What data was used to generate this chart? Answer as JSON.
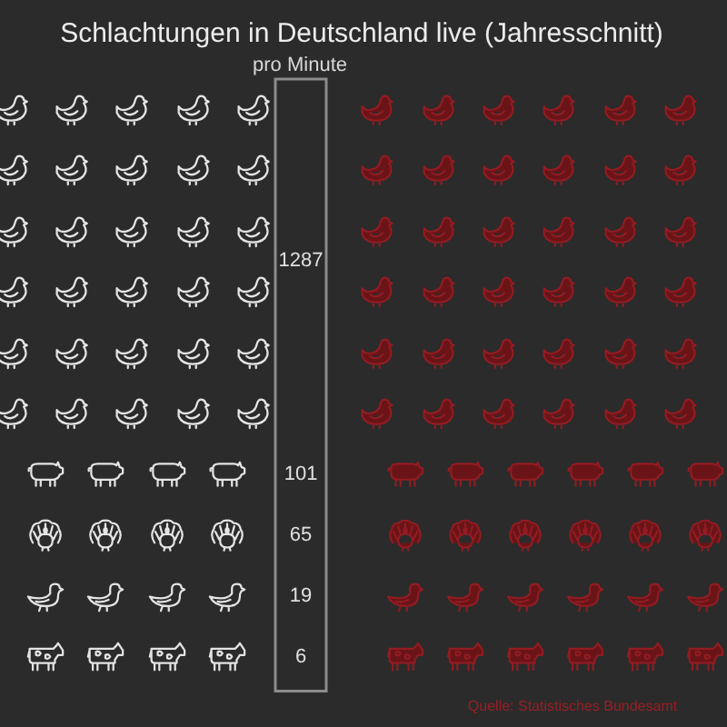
{
  "chart_data": {
    "type": "other",
    "title": "Schlachtungen in Deutschland live (Jahresschnitt)",
    "subtitle": "pro Minute",
    "categories": [
      null,
      null,
      null,
      null,
      null
    ],
    "values": [
      1287,
      101,
      65,
      19,
      6
    ],
    "data_labels": true,
    "annotations": [
      "Quelle: Statistisches Bundesamt"
    ]
  }
}
